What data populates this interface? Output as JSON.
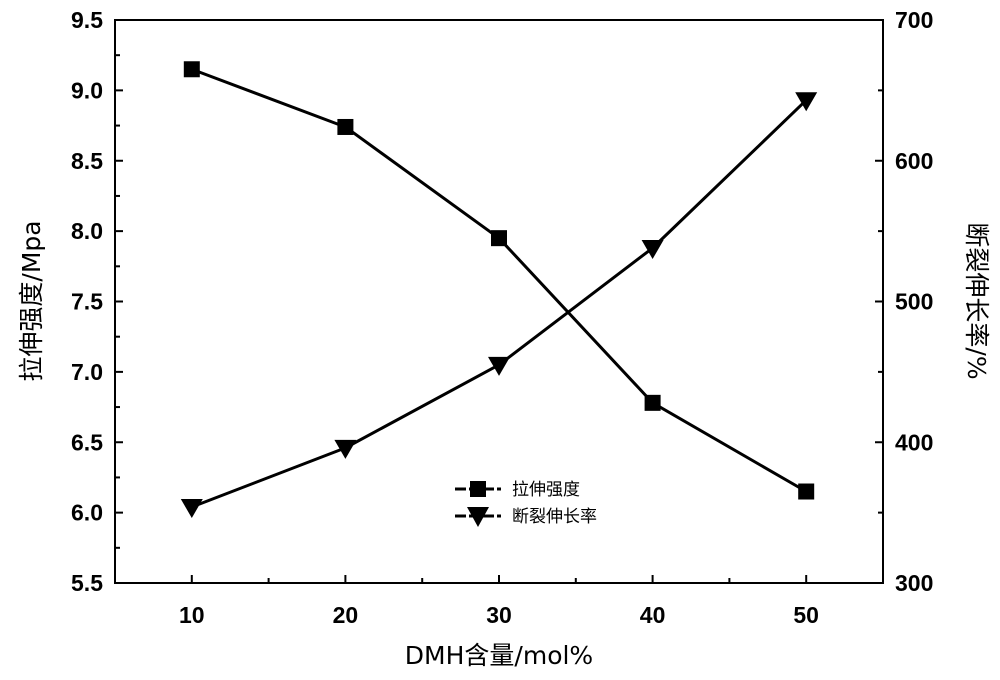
{
  "chart_data": {
    "type": "line",
    "x": [
      10,
      20,
      30,
      40,
      50
    ],
    "xlabel": "DMH含量/mol%",
    "ylabel_left": "拉伸强度/Mpa",
    "ylabel_right": "断裂伸长率/%",
    "xlim": [
      5,
      55
    ],
    "ylim_left": [
      5.5,
      9.5
    ],
    "ylim_right": [
      300,
      700
    ],
    "xticks": [
      10,
      20,
      30,
      40,
      50
    ],
    "yticks_left": [
      "5.5",
      "6.0",
      "6.5",
      "7.0",
      "7.5",
      "8.0",
      "8.5",
      "9.0",
      "9.5"
    ],
    "yticks_right": [
      "300",
      "400",
      "500",
      "600",
      "700"
    ],
    "grid": false,
    "legend_position": "lower-center",
    "series": [
      {
        "name": "拉伸强度",
        "axis": "left",
        "marker": "square",
        "values": [
          9.15,
          8.74,
          7.95,
          6.78,
          6.15
        ]
      },
      {
        "name": "断裂伸长率",
        "axis": "right",
        "marker": "triangle-down",
        "values": [
          354,
          396,
          455,
          538,
          643
        ]
      }
    ]
  }
}
